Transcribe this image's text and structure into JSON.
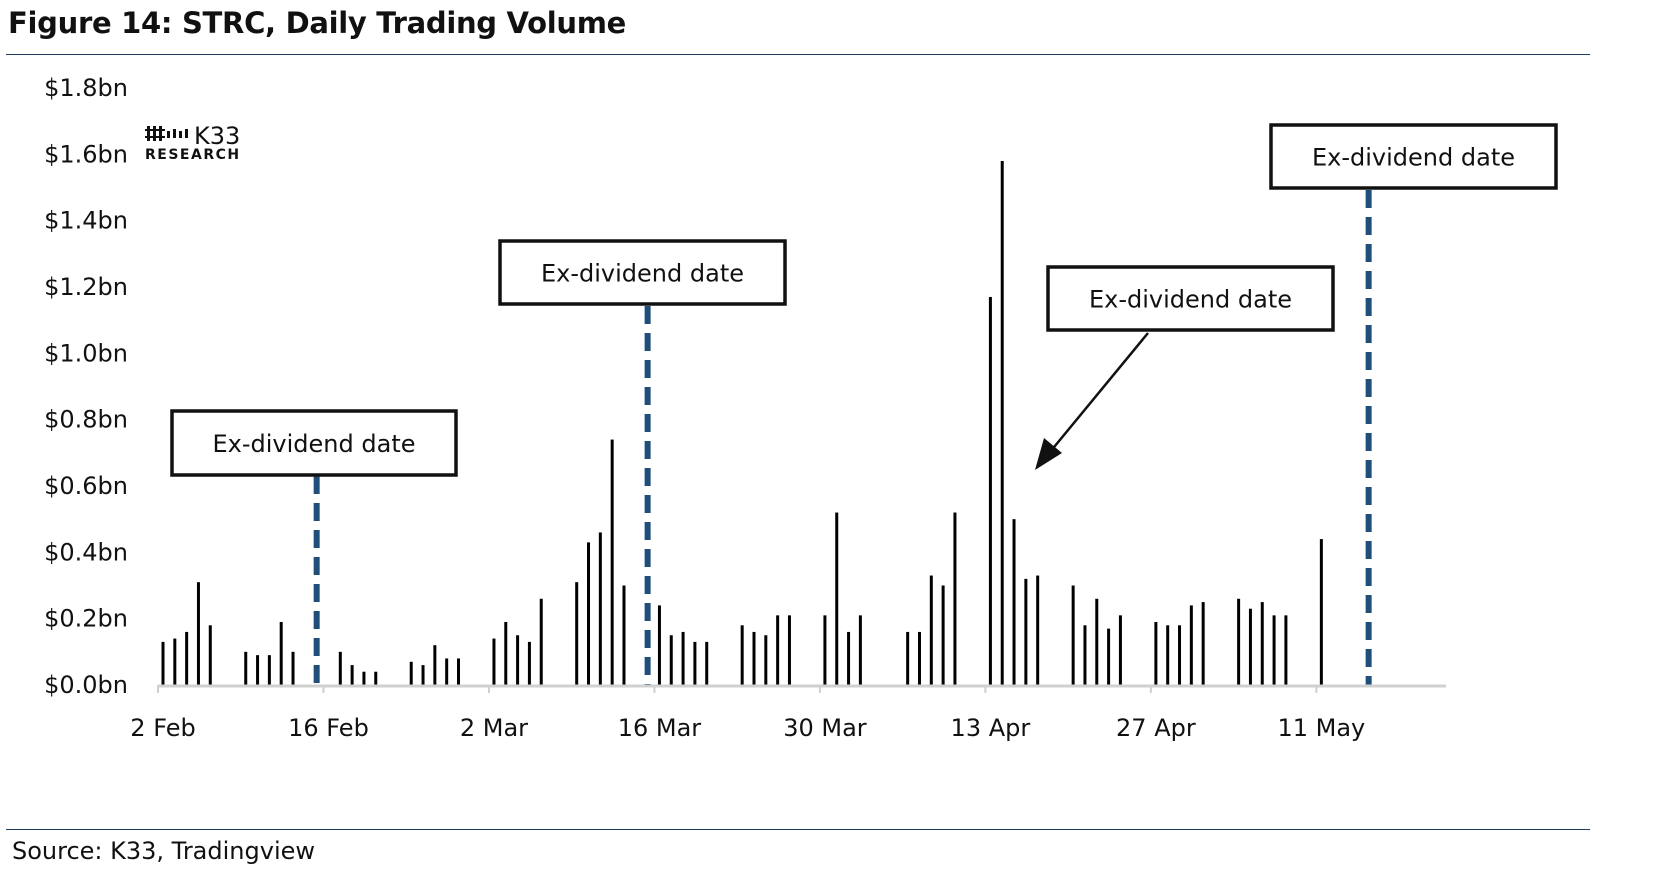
{
  "figure": {
    "title": "Figure 14: STRC, Daily Trading Volume",
    "source": "Source: K33, Tradingview"
  },
  "logo": {
    "name": "K33",
    "subtitle": "RESEARCH"
  },
  "colors": {
    "bars": "#000000",
    "dividend_line": "#1f4e79",
    "axis": "#d0d0d0",
    "rule": "#1f3a5a"
  },
  "chart_data": {
    "type": "bar",
    "title": "Figure 14: STRC, Daily Trading Volume",
    "xlabel": "",
    "ylabel": "",
    "ylim": [
      0,
      1.8
    ],
    "y_unit": "$bn",
    "y_ticks": [
      "$0.0bn",
      "$0.2bn",
      "$0.4bn",
      "$0.6bn",
      "$0.8bn",
      "$1.0bn",
      "$1.2bn",
      "$1.4bn",
      "$1.6bn",
      "$1.8bn"
    ],
    "x_ticks": [
      "2 Feb",
      "16 Feb",
      "2 Mar",
      "16 Mar",
      "30 Mar",
      "13 Apr",
      "27 Apr",
      "11 May"
    ],
    "grid": false,
    "categories": [
      "2026-02-02",
      "2026-02-03",
      "2026-02-04",
      "2026-02-05",
      "2026-02-06",
      "2026-02-09",
      "2026-02-10",
      "2026-02-11",
      "2026-02-12",
      "2026-02-13",
      "2026-02-17",
      "2026-02-18",
      "2026-02-19",
      "2026-02-20",
      "2026-02-23",
      "2026-02-24",
      "2026-02-25",
      "2026-02-26",
      "2026-02-27",
      "2026-03-02",
      "2026-03-03",
      "2026-03-04",
      "2026-03-05",
      "2026-03-06",
      "2026-03-09",
      "2026-03-10",
      "2026-03-11",
      "2026-03-12",
      "2026-03-13",
      "2026-03-16",
      "2026-03-17",
      "2026-03-18",
      "2026-03-19",
      "2026-03-20",
      "2026-03-23",
      "2026-03-24",
      "2026-03-25",
      "2026-03-26",
      "2026-03-27",
      "2026-03-30",
      "2026-03-31",
      "2026-04-01",
      "2026-04-02",
      "2026-04-06",
      "2026-04-07",
      "2026-04-08",
      "2026-04-09",
      "2026-04-10",
      "2026-04-13",
      "2026-04-14",
      "2026-04-15",
      "2026-04-16",
      "2026-04-17",
      "2026-04-20",
      "2026-04-21",
      "2026-04-22",
      "2026-04-23",
      "2026-04-24",
      "2026-04-27",
      "2026-04-28",
      "2026-04-29",
      "2026-04-30",
      "2026-05-01",
      "2026-05-04",
      "2026-05-05",
      "2026-05-06",
      "2026-05-07",
      "2026-05-08",
      "2026-05-11"
    ],
    "values": [
      0.13,
      0.14,
      0.16,
      0.31,
      0.18,
      0.1,
      0.09,
      0.09,
      0.19,
      0.1,
      0.1,
      0.06,
      0.04,
      0.04,
      0.07,
      0.06,
      0.12,
      0.08,
      0.08,
      0.14,
      0.19,
      0.15,
      0.13,
      0.26,
      0.31,
      0.43,
      0.46,
      0.74,
      0.3,
      0.24,
      0.15,
      0.16,
      0.13,
      0.13,
      0.18,
      0.16,
      0.15,
      0.21,
      0.21,
      0.21,
      0.52,
      0.16,
      0.21,
      0.16,
      0.16,
      0.33,
      0.3,
      0.52,
      1.17,
      1.58,
      0.5,
      0.32,
      0.33,
      0.3,
      0.18,
      0.26,
      0.17,
      0.21,
      0.19,
      0.18,
      0.18,
      0.24,
      0.25,
      0.26,
      0.23,
      0.25,
      0.21,
      0.21,
      0.44
    ],
    "ex_dividend_dates": [
      {
        "date": "2026-02-15",
        "label": "Ex-dividend date"
      },
      {
        "date": "2026-03-15",
        "label": "Ex-dividend date"
      },
      {
        "date": "2026-04-15",
        "label": "Ex-dividend date"
      },
      {
        "date": "2026-05-15",
        "label": "Ex-dividend date"
      }
    ]
  }
}
